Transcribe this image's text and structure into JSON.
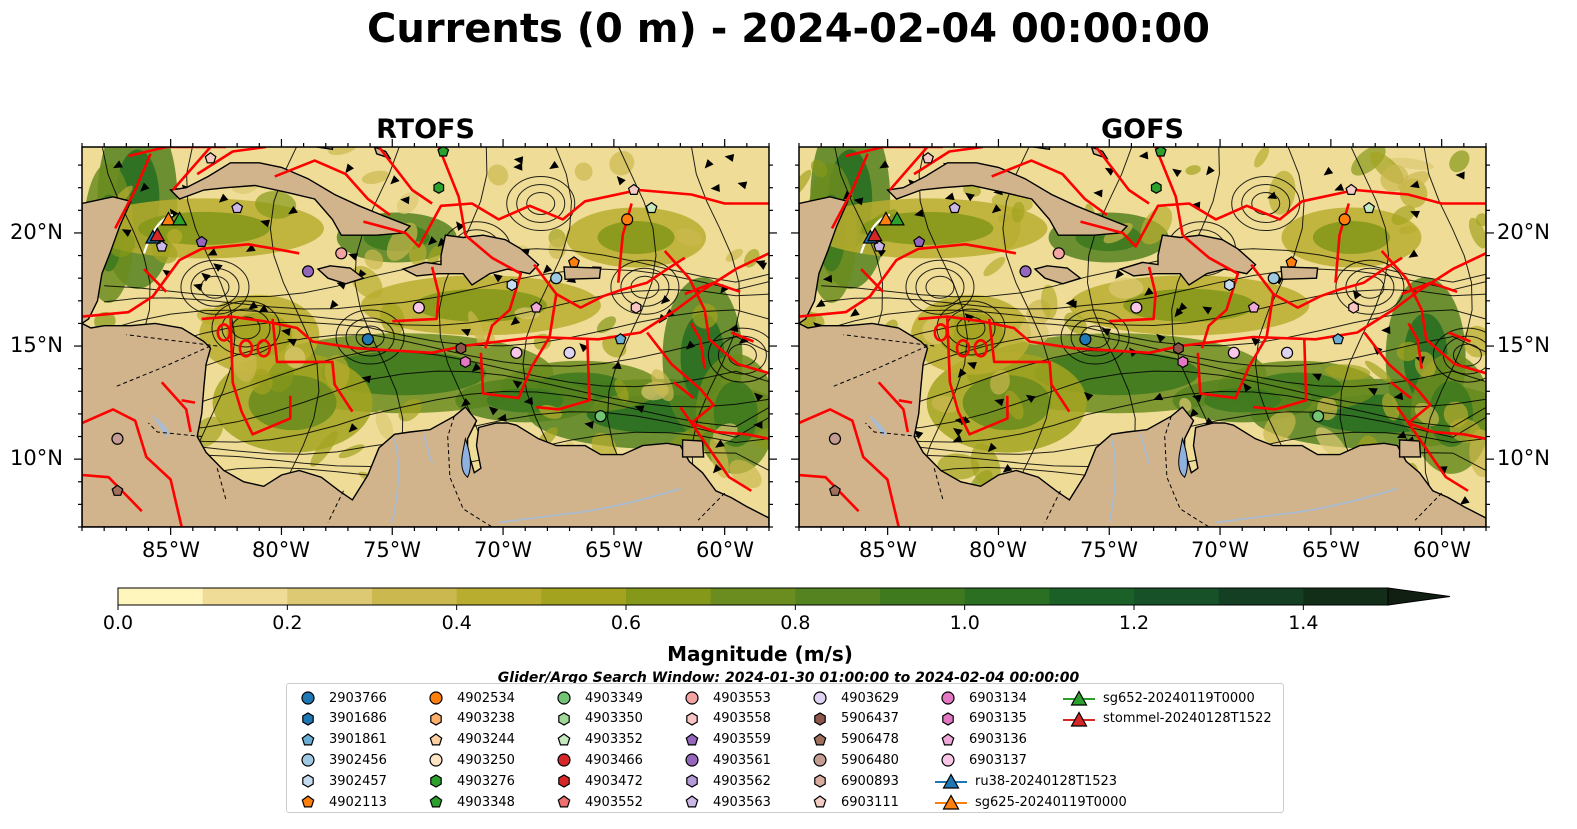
{
  "title": "Currents (0 m) - 2024-02-04 00:00:00",
  "panels": [
    {
      "title": "RTOFS",
      "warp": 0
    },
    {
      "title": "GOFS",
      "warp": 1
    }
  ],
  "lon_ticks": [
    "85°W",
    "80°W",
    "75°W",
    "70°W",
    "65°W",
    "60°W"
  ],
  "lat_ticks": [
    "20°N",
    "15°N",
    "10°N"
  ],
  "colorbar": {
    "label": "Magnitude (m/s)",
    "ticks": [
      "0.0",
      "0.2",
      "0.4",
      "0.6",
      "0.8",
      "1.0",
      "1.2",
      "1.4"
    ],
    "range": [
      0,
      1.5
    ],
    "extend": "max",
    "colors": [
      "#fff6bd",
      "#efdd97",
      "#ddc973",
      "#cbb84e",
      "#b8ad2f",
      "#a3a320",
      "#86981a",
      "#6b8c1e",
      "#55831f",
      "#3f7a1f",
      "#2a6f22",
      "#1b6127",
      "#165128",
      "#143f22",
      "#122e19",
      "#101f12"
    ]
  },
  "colors": {
    "land": "#d2b48c",
    "eez": "#ff0000",
    "river": "#a7bdd6"
  },
  "search_window": "Glider/Argo Search Window: 2024-01-30 01:00:00 to 2024-02-04 00:00:00",
  "legend": [
    {
      "label": "2903766",
      "marker": "circle",
      "color": "#1f77b4"
    },
    {
      "label": "3901686",
      "marker": "hexagon",
      "color": "#1f77b4"
    },
    {
      "label": "3901861",
      "marker": "pentagon",
      "color": "#6aaed6"
    },
    {
      "label": "3902456",
      "marker": "circle",
      "color": "#9ecae1"
    },
    {
      "label": "3902457",
      "marker": "hexagon",
      "color": "#c6dbef"
    },
    {
      "label": "4902113",
      "marker": "pentagon",
      "color": "#ff7f0e"
    },
    {
      "label": "4902534",
      "marker": "circle",
      "color": "#ff7f0e"
    },
    {
      "label": "4903238",
      "marker": "hexagon",
      "color": "#fdae6b"
    },
    {
      "label": "4903244",
      "marker": "pentagon",
      "color": "#fdd0a2"
    },
    {
      "label": "4903250",
      "marker": "circle",
      "color": "#fde4c4"
    },
    {
      "label": "4903276",
      "marker": "hexagon",
      "color": "#2ca02c"
    },
    {
      "label": "4903348",
      "marker": "pentagon",
      "color": "#2ca02c"
    },
    {
      "label": "4903349",
      "marker": "circle",
      "color": "#74c476"
    },
    {
      "label": "4903350",
      "marker": "hexagon",
      "color": "#a1d99b"
    },
    {
      "label": "4903352",
      "marker": "pentagon",
      "color": "#c7e9c0"
    },
    {
      "label": "4903466",
      "marker": "circle",
      "color": "#d62728"
    },
    {
      "label": "4903472",
      "marker": "hexagon",
      "color": "#d62728"
    },
    {
      "label": "4903552",
      "marker": "pentagon",
      "color": "#f07070"
    },
    {
      "label": "4903553",
      "marker": "circle",
      "color": "#f4a3a3"
    },
    {
      "label": "4903558",
      "marker": "hexagon",
      "color": "#f8c4c4"
    },
    {
      "label": "4903559",
      "marker": "pentagon",
      "color": "#9467bd"
    },
    {
      "label": "4903561",
      "marker": "circle",
      "color": "#9467bd"
    },
    {
      "label": "4903562",
      "marker": "hexagon",
      "color": "#b59ad8"
    },
    {
      "label": "4903563",
      "marker": "pentagon",
      "color": "#cbb8e6"
    },
    {
      "label": "4903629",
      "marker": "circle",
      "color": "#e0d2f2"
    },
    {
      "label": "5906437",
      "marker": "hexagon",
      "color": "#8c564b"
    },
    {
      "label": "5906478",
      "marker": "pentagon",
      "color": "#a0705f"
    },
    {
      "label": "5906480",
      "marker": "circle",
      "color": "#c49c94"
    },
    {
      "label": "6900893",
      "marker": "hexagon",
      "color": "#d8aca0"
    },
    {
      "label": "6903111",
      "marker": "pentagon",
      "color": "#f2cdc3"
    },
    {
      "label": "6903134",
      "marker": "circle",
      "color": "#e377c2"
    },
    {
      "label": "6903135",
      "marker": "hexagon",
      "color": "#e377c2"
    },
    {
      "label": "6903136",
      "marker": "pentagon",
      "color": "#f0a8d8"
    },
    {
      "label": "6903137",
      "marker": "circle",
      "color": "#f7c6e8"
    },
    {
      "label": "ru38-20240128T1523",
      "marker": "triangle-line",
      "color": "#1f77b4"
    },
    {
      "label": "sg625-20240119T0000",
      "marker": "triangle-line",
      "color": "#ff7f0e"
    },
    {
      "label": "sg652-20240119T0000",
      "marker": "triangle-line",
      "color": "#2ca02c"
    },
    {
      "label": "stommel-20240128T1522",
      "marker": "triangle-line",
      "color": "#d62728"
    }
  ],
  "map_markers": [
    {
      "id": "6903111",
      "lon": -83.2,
      "lat": 23.3
    },
    {
      "id": "4903348",
      "lon": -72.7,
      "lat": 23.6
    },
    {
      "id": "4903276",
      "lon": -72.9,
      "lat": 22.0
    },
    {
      "id": "6903111",
      "lon": -64.1,
      "lat": 21.9
    },
    {
      "id": "4902534",
      "lon": -64.4,
      "lat": 20.6
    },
    {
      "id": "4903352",
      "lon": -63.3,
      "lat": 21.1
    },
    {
      "id": "4903563",
      "lon": -82.0,
      "lat": 21.1
    },
    {
      "id": "4903559",
      "lon": -83.6,
      "lat": 19.6
    },
    {
      "id": "4903563",
      "lon": -85.4,
      "lat": 19.4
    },
    {
      "id": "4903561",
      "lon": -78.8,
      "lat": 18.3
    },
    {
      "id": "4903553",
      "lon": -77.3,
      "lat": 19.1
    },
    {
      "id": "3902457",
      "lon": -69.6,
      "lat": 17.7
    },
    {
      "id": "3902456",
      "lon": -67.6,
      "lat": 18.0
    },
    {
      "id": "4902113",
      "lon": -66.8,
      "lat": 18.7
    },
    {
      "id": "6903137",
      "lon": -73.8,
      "lat": 16.7
    },
    {
      "id": "6903136",
      "lon": -68.5,
      "lat": 16.7
    },
    {
      "id": "4903558",
      "lon": -64.0,
      "lat": 16.7
    },
    {
      "id": "2903766",
      "lon": -76.1,
      "lat": 15.3
    },
    {
      "id": "3901861",
      "lon": -64.7,
      "lat": 15.3
    },
    {
      "id": "5906437",
      "lon": -71.9,
      "lat": 14.9
    },
    {
      "id": "6903135",
      "lon": -71.7,
      "lat": 14.3
    },
    {
      "id": "6903137",
      "lon": -69.4,
      "lat": 14.7
    },
    {
      "id": "4903629",
      "lon": -67.0,
      "lat": 14.7
    },
    {
      "id": "4903349",
      "lon": -65.6,
      "lat": 11.9
    },
    {
      "id": "5906480",
      "lon": -87.4,
      "lat": 10.9
    },
    {
      "id": "5906478",
      "lon": -87.4,
      "lat": 8.6
    },
    {
      "id": "ru38-20240128T1523",
      "lon": -85.8,
      "lat": 19.8
    },
    {
      "id": "sg625-20240119T0000",
      "lon": -85.1,
      "lat": 20.6
    },
    {
      "id": "sg652-20240119T0000",
      "lon": -84.6,
      "lat": 20.6
    },
    {
      "id": "stommel-20240128T1522",
      "lon": -85.6,
      "lat": 19.9
    }
  ]
}
